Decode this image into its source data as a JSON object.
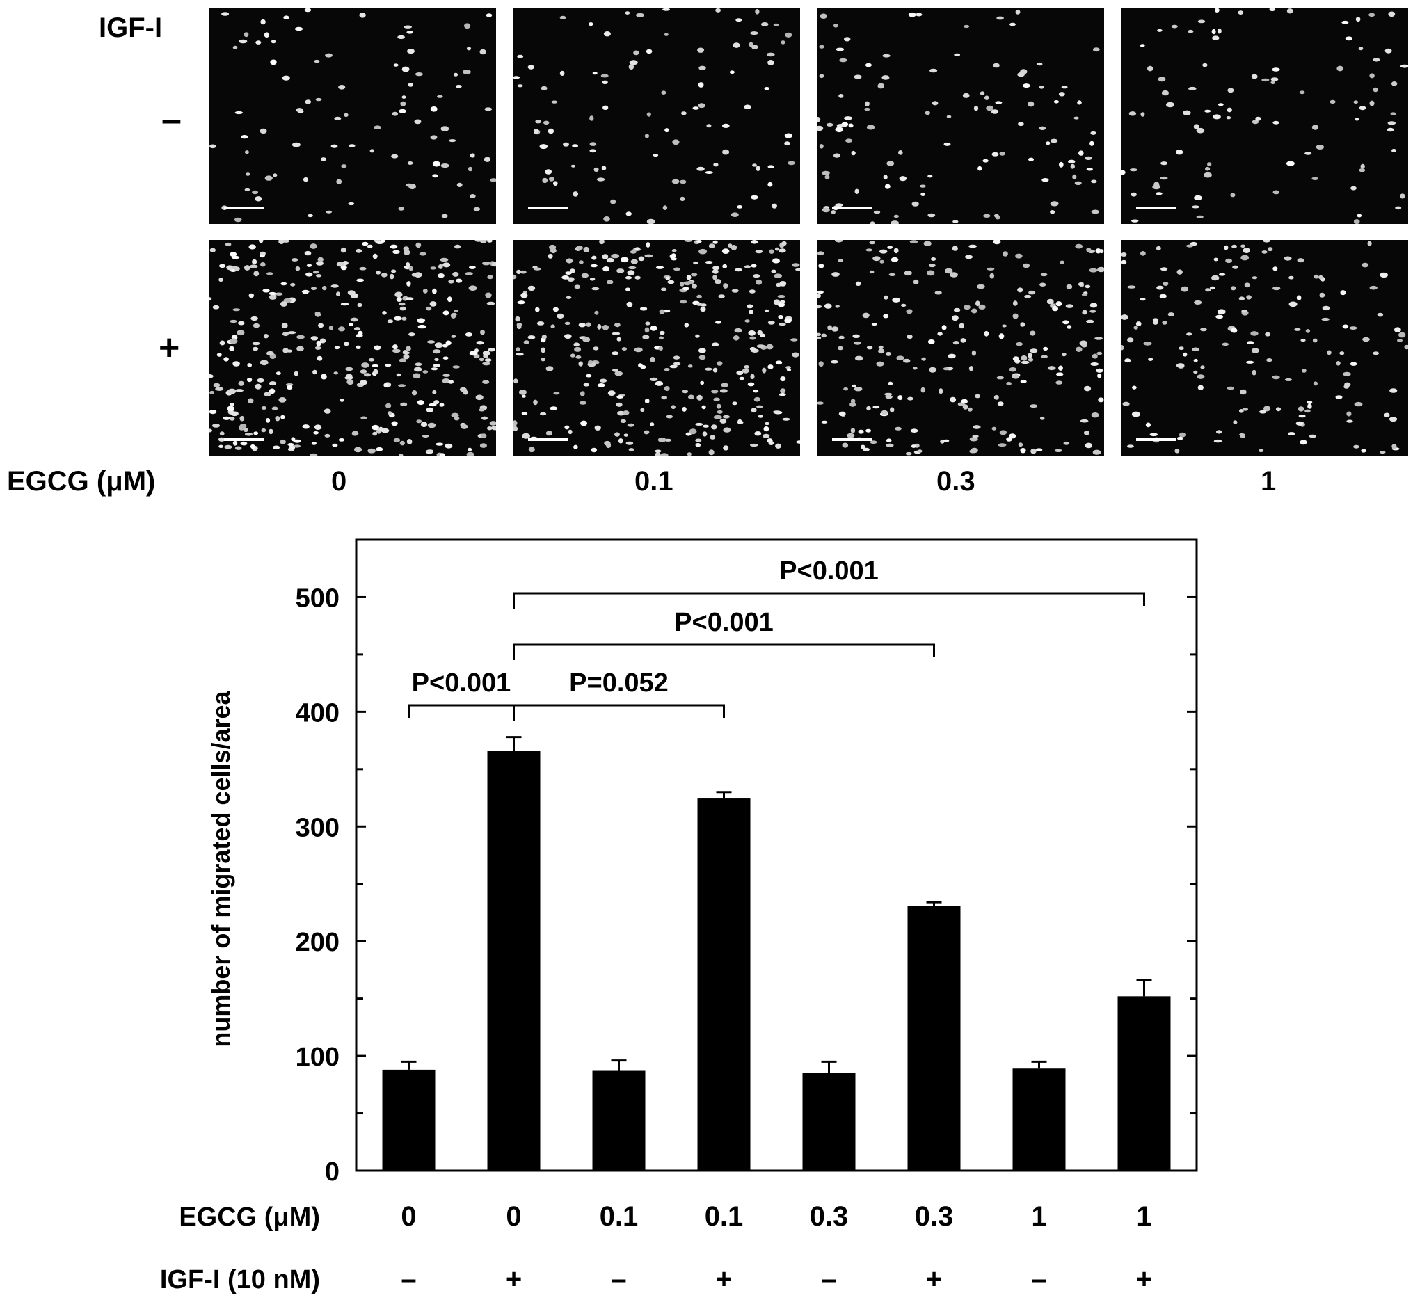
{
  "micrographs": {
    "row_header": "IGF-I",
    "rows": [
      "–",
      "+"
    ],
    "x_label": "EGCG (μM)",
    "columns": [
      "0",
      "0.1",
      "0.3",
      "1"
    ]
  },
  "chart_data": {
    "type": "bar",
    "ylabel": "number of migrated cells/area",
    "ylim": [
      0,
      550
    ],
    "yticks": [
      0,
      100,
      200,
      300,
      400,
      500
    ],
    "grid": false,
    "legend": "none",
    "bar_color": "#000000",
    "categories": [
      {
        "egcg": "0",
        "igf": "–"
      },
      {
        "egcg": "0",
        "igf": "+"
      },
      {
        "egcg": "0.1",
        "igf": "–"
      },
      {
        "egcg": "0.1",
        "igf": "+"
      },
      {
        "egcg": "0.3",
        "igf": "–"
      },
      {
        "egcg": "0.3",
        "igf": "+"
      },
      {
        "egcg": "1",
        "igf": "–"
      },
      {
        "egcg": "1",
        "igf": "+"
      }
    ],
    "values": [
      88,
      366,
      87,
      325,
      85,
      231,
      89,
      152
    ],
    "errors": [
      7,
      12,
      9,
      5,
      10,
      3,
      6,
      14
    ],
    "row_labels": {
      "egcg": "EGCG (μM)",
      "igf": "IGF-I (10 nM)"
    },
    "significance": [
      {
        "from": 0,
        "to": 1,
        "label": "P<0.001"
      },
      {
        "from": 1,
        "to": 3,
        "label": "P=0.052"
      },
      {
        "from": 1,
        "to": 5,
        "label": "P<0.001"
      },
      {
        "from": 1,
        "to": 7,
        "label": "P<0.001"
      }
    ]
  }
}
